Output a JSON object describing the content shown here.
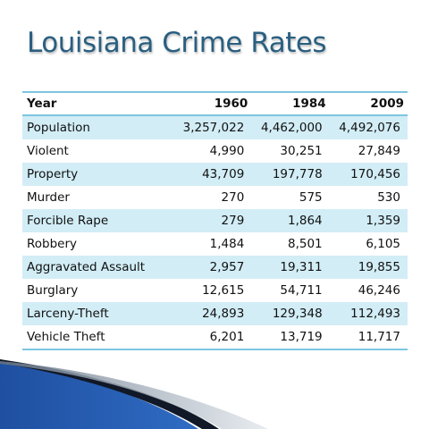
{
  "title": "Louisiana Crime Rates",
  "table": {
    "headers": [
      "Year",
      "1960",
      "1984",
      "2009"
    ],
    "rows": [
      [
        "Population",
        "3,257,022",
        "4,462,000",
        "4,492,076"
      ],
      [
        "Violent",
        "4,990",
        "30,251",
        "27,849"
      ],
      [
        "Property",
        "43,709",
        "197,778",
        "170,456"
      ],
      [
        "Murder",
        "270",
        "575",
        "530"
      ],
      [
        "Forcible Rape",
        "279",
        "1,864",
        "1,359"
      ],
      [
        "Robbery",
        "1,484",
        "8,501",
        "6,105"
      ],
      [
        "Aggravated Assault",
        "2,957",
        "19,311",
        "19,855"
      ],
      [
        "Burglary",
        "12,615",
        "54,711",
        "46,246"
      ],
      [
        "Larceny-Theft",
        "24,893",
        "129,348",
        "112,493"
      ],
      [
        "Vehicle Theft",
        "6,201",
        "13,719",
        "11,717"
      ]
    ]
  },
  "colors": {
    "title": "#2a5f80",
    "row_band": "#d2edf6",
    "rule": "#7cc6e0",
    "swoosh_blue": "#1f4fa0"
  }
}
